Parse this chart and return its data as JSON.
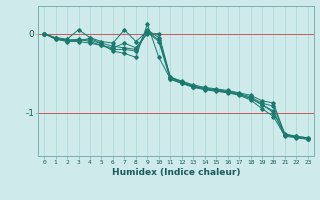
{
  "xlabel": "Humidex (Indice chaleur)",
  "ylabel": "",
  "bg_color": "#ceeaea",
  "line_color": "#1a7a6e",
  "grid_color": "#aad4d4",
  "xlim": [
    -0.5,
    23.5
  ],
  "ylim": [
    -1.55,
    0.35
  ],
  "yticks": [
    0,
    -1
  ],
  "xticks": [
    0,
    1,
    2,
    3,
    4,
    5,
    6,
    7,
    8,
    9,
    10,
    11,
    12,
    13,
    14,
    15,
    16,
    17,
    18,
    19,
    20,
    21,
    22,
    23
  ],
  "series": [
    [
      0.0,
      -0.05,
      -0.07,
      0.05,
      -0.05,
      -0.1,
      -0.12,
      0.05,
      -0.1,
      0.03,
      -0.08,
      -0.55,
      -0.6,
      -0.65,
      -0.68,
      -0.7,
      -0.72,
      -0.75,
      -0.78,
      -0.85,
      -0.88,
      -1.28,
      -1.3,
      -1.32
    ],
    [
      0.0,
      -0.07,
      -0.09,
      -0.07,
      -0.1,
      -0.15,
      -0.18,
      -0.12,
      -0.18,
      0.0,
      0.0,
      -0.55,
      -0.62,
      -0.67,
      -0.7,
      -0.72,
      -0.74,
      -0.77,
      -0.82,
      -0.9,
      -1.0,
      -1.29,
      -1.31,
      -1.33
    ],
    [
      0.0,
      -0.06,
      -0.08,
      -0.08,
      -0.08,
      -0.13,
      -0.22,
      -0.25,
      -0.3,
      0.12,
      -0.3,
      -0.57,
      -0.63,
      -0.68,
      -0.71,
      -0.73,
      -0.75,
      -0.78,
      -0.84,
      -0.95,
      -1.05,
      -1.3,
      -1.32,
      -1.34
    ],
    [
      0.0,
      -0.07,
      -0.1,
      -0.1,
      -0.12,
      -0.15,
      -0.2,
      -0.2,
      -0.22,
      0.02,
      -0.1,
      -0.58,
      -0.63,
      -0.67,
      -0.7,
      -0.72,
      -0.74,
      -0.77,
      -0.82,
      -0.9,
      -0.98,
      -1.28,
      -1.31,
      -1.33
    ],
    [
      0.0,
      -0.06,
      -0.08,
      -0.09,
      -0.06,
      -0.12,
      -0.16,
      -0.18,
      -0.2,
      0.05,
      -0.05,
      -0.56,
      -0.61,
      -0.66,
      -0.69,
      -0.71,
      -0.73,
      -0.76,
      -0.8,
      -0.88,
      -0.92,
      -1.27,
      -1.3,
      -1.32
    ]
  ]
}
